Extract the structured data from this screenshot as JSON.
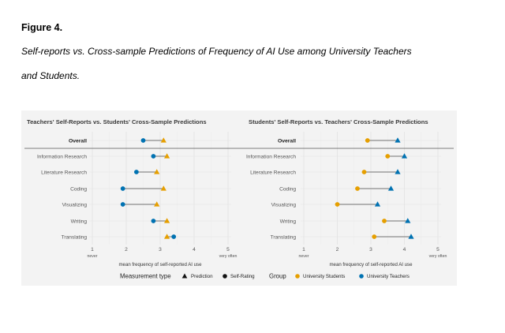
{
  "figure": {
    "label": "Figure 4.",
    "caption_line1": "Self-reports vs. Cross-sample Predictions of Frequency of AI Use among University Teachers",
    "caption_line2": "and Students."
  },
  "legend": {
    "measurement_title": "Measurement type",
    "measurement_items": [
      {
        "shape": "triangle",
        "label": "Prediction"
      },
      {
        "shape": "circle",
        "label": "Self-Rating"
      }
    ],
    "group_title": "Group",
    "group_items": [
      {
        "label": "University Students",
        "color": "#E69F00"
      },
      {
        "label": "University Teachers",
        "color": "#0072B2"
      }
    ]
  },
  "chart_data": [
    {
      "type": "dumbbell",
      "title": "Teachers' Self-Reports vs. Students' Cross-Sample Predictions",
      "xlabel": "mean frequency of self-reported AI use",
      "xlim": [
        1,
        5
      ],
      "xticks": [
        "1",
        "2",
        "3",
        "4",
        "5"
      ],
      "xtick_low": "never",
      "xtick_high": "very often",
      "categories": [
        "Overall",
        "Information Research",
        "Literature Research",
        "Coding",
        "Visualizing",
        "Writing",
        "Translating"
      ],
      "series": [
        {
          "name": "Self-Rating",
          "group": "University Teachers",
          "shape": "circle",
          "color": "#0072B2",
          "values": [
            2.5,
            2.8,
            2.3,
            1.9,
            1.9,
            2.8,
            3.4
          ]
        },
        {
          "name": "Prediction",
          "group": "University Students",
          "shape": "triangle",
          "color": "#E69F00",
          "values": [
            3.1,
            3.2,
            2.9,
            3.1,
            2.9,
            3.2,
            3.2
          ]
        }
      ]
    },
    {
      "type": "dumbbell",
      "title": "Students' Self-Reports vs. Teachers' Cross-Sample Predictions",
      "xlabel": "mean frequency of self-reported AI use",
      "xlim": [
        1,
        5
      ],
      "xticks": [
        "1",
        "2",
        "3",
        "4",
        "5"
      ],
      "xtick_low": "never",
      "xtick_high": "very often",
      "categories": [
        "Overall",
        "Information Research",
        "Literature Research",
        "Coding",
        "Visualizing",
        "Writing",
        "Translating"
      ],
      "series": [
        {
          "name": "Self-Rating",
          "group": "University Students",
          "shape": "circle",
          "color": "#E69F00",
          "values": [
            2.9,
            3.5,
            2.8,
            2.6,
            2.0,
            3.4,
            3.1
          ]
        },
        {
          "name": "Prediction",
          "group": "University Teachers",
          "shape": "triangle",
          "color": "#0072B2",
          "values": [
            3.8,
            4.0,
            3.8,
            3.6,
            3.2,
            4.1,
            4.2
          ]
        }
      ]
    }
  ]
}
